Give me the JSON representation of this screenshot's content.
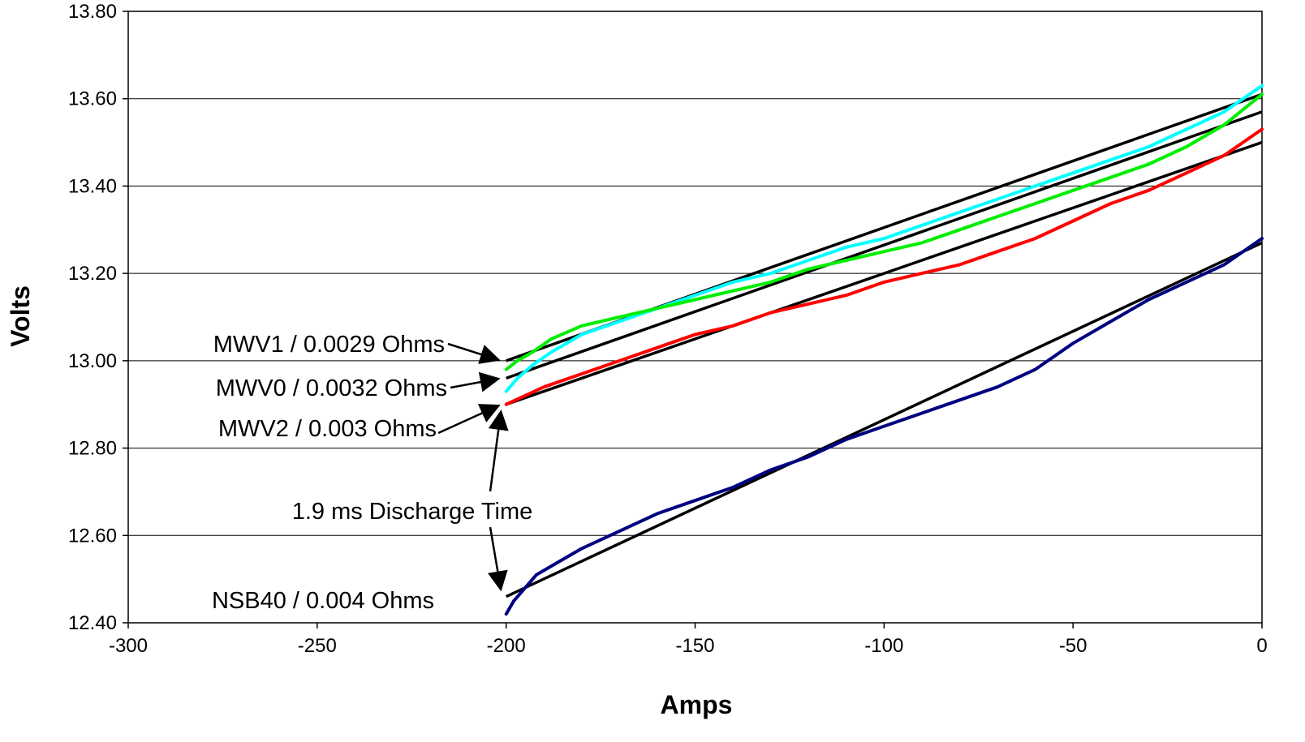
{
  "chart_data": {
    "type": "line",
    "title": "",
    "xlabel": "Amps",
    "ylabel": "Volts",
    "xlim": [
      -300,
      0
    ],
    "ylim": [
      12.4,
      13.8
    ],
    "grid": "horizontal major gridlines",
    "legend": "none",
    "x_ticks": [
      "-300",
      "-250",
      "-200",
      "-150",
      "-100",
      "-50",
      "0"
    ],
    "y_ticks": [
      "12.40",
      "12.60",
      "12.80",
      "13.00",
      "13.20",
      "13.40",
      "13.60",
      "13.80"
    ],
    "series": [
      {
        "color": "#00ffff",
        "points": [
          [
            -200,
            12.93
          ],
          [
            -197,
            12.96
          ],
          [
            -193,
            12.99
          ],
          [
            -188,
            13.02
          ],
          [
            -180,
            13.06
          ],
          [
            -170,
            13.09
          ],
          [
            -160,
            13.12
          ],
          [
            -150,
            13.15
          ],
          [
            -140,
            13.18
          ],
          [
            -130,
            13.2
          ],
          [
            -120,
            13.23
          ],
          [
            -110,
            13.26
          ],
          [
            -100,
            13.28
          ],
          [
            -90,
            13.31
          ],
          [
            -80,
            13.34
          ],
          [
            -70,
            13.37
          ],
          [
            -60,
            13.4
          ],
          [
            -50,
            13.43
          ],
          [
            -40,
            13.46
          ],
          [
            -30,
            13.49
          ],
          [
            -20,
            13.53
          ],
          [
            -10,
            13.57
          ],
          [
            0,
            13.63
          ]
        ]
      },
      {
        "color": "#00ee00",
        "points": [
          [
            -200,
            12.98
          ],
          [
            -197,
            13.0
          ],
          [
            -193,
            13.02
          ],
          [
            -188,
            13.05
          ],
          [
            -180,
            13.08
          ],
          [
            -170,
            13.1
          ],
          [
            -160,
            13.12
          ],
          [
            -150,
            13.14
          ],
          [
            -140,
            13.16
          ],
          [
            -130,
            13.18
          ],
          [
            -120,
            13.21
          ],
          [
            -110,
            13.23
          ],
          [
            -100,
            13.25
          ],
          [
            -90,
            13.27
          ],
          [
            -80,
            13.3
          ],
          [
            -70,
            13.33
          ],
          [
            -60,
            13.36
          ],
          [
            -50,
            13.39
          ],
          [
            -40,
            13.42
          ],
          [
            -30,
            13.45
          ],
          [
            -20,
            13.49
          ],
          [
            -10,
            13.54
          ],
          [
            0,
            13.61
          ]
        ]
      },
      {
        "color": "#ff0000",
        "points": [
          [
            -200,
            12.9
          ],
          [
            -195,
            12.92
          ],
          [
            -190,
            12.94
          ],
          [
            -180,
            12.97
          ],
          [
            -170,
            13.0
          ],
          [
            -160,
            13.03
          ],
          [
            -150,
            13.06
          ],
          [
            -140,
            13.08
          ],
          [
            -130,
            13.11
          ],
          [
            -120,
            13.13
          ],
          [
            -110,
            13.15
          ],
          [
            -100,
            13.18
          ],
          [
            -90,
            13.2
          ],
          [
            -80,
            13.22
          ],
          [
            -70,
            13.25
          ],
          [
            -60,
            13.28
          ],
          [
            -50,
            13.32
          ],
          [
            -40,
            13.36
          ],
          [
            -30,
            13.39
          ],
          [
            -20,
            13.43
          ],
          [
            -10,
            13.47
          ],
          [
            0,
            13.53
          ]
        ]
      },
      {
        "color": "#000080",
        "points": [
          [
            -200,
            12.42
          ],
          [
            -198,
            12.45
          ],
          [
            -195,
            12.48
          ],
          [
            -192,
            12.51
          ],
          [
            -188,
            12.53
          ],
          [
            -180,
            12.57
          ],
          [
            -170,
            12.61
          ],
          [
            -160,
            12.65
          ],
          [
            -150,
            12.68
          ],
          [
            -140,
            12.71
          ],
          [
            -130,
            12.75
          ],
          [
            -120,
            12.78
          ],
          [
            -110,
            12.82
          ],
          [
            -100,
            12.85
          ],
          [
            -90,
            12.88
          ],
          [
            -80,
            12.91
          ],
          [
            -70,
            12.94
          ],
          [
            -60,
            12.98
          ],
          [
            -50,
            13.04
          ],
          [
            -40,
            13.09
          ],
          [
            -30,
            13.14
          ],
          [
            -20,
            13.18
          ],
          [
            -10,
            13.22
          ],
          [
            0,
            13.28
          ]
        ]
      }
    ],
    "trendlines": [
      {
        "color": "#000000",
        "from": [
          -200,
          13.0
        ],
        "to": [
          0,
          13.61
        ]
      },
      {
        "color": "#000000",
        "from": [
          -200,
          12.96
        ],
        "to": [
          0,
          13.57
        ]
      },
      {
        "color": "#000000",
        "from": [
          -200,
          12.9
        ],
        "to": [
          0,
          13.5
        ]
      },
      {
        "color": "#000000",
        "from": [
          -200,
          12.46
        ],
        "to": [
          0,
          13.27
        ]
      }
    ],
    "annotations": [
      {
        "text": "MWV1 / 0.0029 Ohms",
        "arrow_to": [
          -200,
          13.0
        ]
      },
      {
        "text": "MWV0 / 0.0032 Ohms",
        "arrow_to": [
          -200,
          12.96
        ]
      },
      {
        "text": "MWV2 / 0.003 Ohms",
        "arrow_to": [
          -200,
          12.9
        ]
      },
      {
        "text": "1.9 ms Discharge Time",
        "arrow_to": [
          [
            -200,
            12.89
          ],
          [
            -200,
            12.47
          ]
        ]
      },
      {
        "text": "NSB40 / 0.004 Ohms"
      }
    ]
  }
}
